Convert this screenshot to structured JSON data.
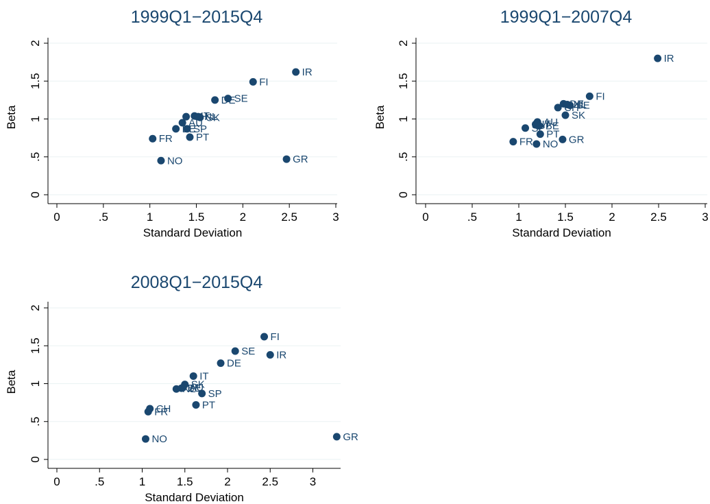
{
  "chart_data": [
    {
      "type": "scatter",
      "title": "1999Q1−2015Q4",
      "xlabel": "Standard Deviation",
      "ylabel": "Beta",
      "xlim": [
        0,
        3
      ],
      "ylim": [
        0,
        2
      ],
      "xticks": [
        {
          "v": 0,
          "t": "0"
        },
        {
          "v": 0.5,
          "t": ".5"
        },
        {
          "v": 1,
          "t": "1"
        },
        {
          "v": 1.5,
          "t": "1.5"
        },
        {
          "v": 2,
          "t": "2"
        },
        {
          "v": 2.5,
          "t": "2.5"
        },
        {
          "v": 3,
          "t": "3"
        }
      ],
      "yticks": [
        {
          "v": 0,
          "t": "0"
        },
        {
          "v": 0.5,
          "t": ".5"
        },
        {
          "v": 1,
          "t": "1"
        },
        {
          "v": 1.5,
          "t": "1.5"
        },
        {
          "v": 2,
          "t": "2"
        }
      ],
      "grid": true,
      "points": [
        {
          "label": "IR",
          "x": 2.57,
          "y": 1.62
        },
        {
          "label": "FI",
          "x": 2.11,
          "y": 1.49
        },
        {
          "label": "SE",
          "x": 1.84,
          "y": 1.27
        },
        {
          "label": "DE",
          "x": 1.7,
          "y": 1.25
        },
        {
          "label": "IT",
          "x": 1.48,
          "y": 1.04
        },
        {
          "label": "CH",
          "x": 1.39,
          "y": 1.03
        },
        {
          "label": "NL",
          "x": 1.52,
          "y": 1.03
        },
        {
          "label": "SK",
          "x": 1.54,
          "y": 1.02
        },
        {
          "label": "AU",
          "x": 1.35,
          "y": 0.95
        },
        {
          "label": "BE",
          "x": 1.28,
          "y": 0.87
        },
        {
          "label": "SP",
          "x": 1.4,
          "y": 0.87
        },
        {
          "label": "PT",
          "x": 1.43,
          "y": 0.76
        },
        {
          "label": "FR",
          "x": 1.03,
          "y": 0.74
        },
        {
          "label": "NO",
          "x": 1.12,
          "y": 0.45
        },
        {
          "label": "GR",
          "x": 2.47,
          "y": 0.47
        }
      ]
    },
    {
      "type": "scatter",
      "title": "1999Q1−2007Q4",
      "xlabel": "Standard Deviation",
      "ylabel": "Beta",
      "xlim": [
        0,
        3
      ],
      "ylim": [
        0,
        2
      ],
      "xticks": [
        {
          "v": 0,
          "t": "0"
        },
        {
          "v": 0.5,
          "t": ".5"
        },
        {
          "v": 1,
          "t": "1"
        },
        {
          "v": 1.5,
          "t": "1.5"
        },
        {
          "v": 2,
          "t": "2"
        },
        {
          "v": 2.5,
          "t": "2.5"
        },
        {
          "v": 3,
          "t": "3"
        }
      ],
      "yticks": [
        {
          "v": 0,
          "t": "0"
        },
        {
          "v": 0.5,
          "t": ".5"
        },
        {
          "v": 1,
          "t": "1"
        },
        {
          "v": 1.5,
          "t": "1.5"
        },
        {
          "v": 2,
          "t": "2"
        }
      ],
      "grid": true,
      "points": [
        {
          "label": "IR",
          "x": 2.49,
          "y": 1.8
        },
        {
          "label": "FI",
          "x": 1.76,
          "y": 1.3
        },
        {
          "label": "DE",
          "x": 1.48,
          "y": 1.2
        },
        {
          "label": "NL",
          "x": 1.52,
          "y": 1.19
        },
        {
          "label": "SE",
          "x": 1.55,
          "y": 1.18
        },
        {
          "label": "CH",
          "x": 1.42,
          "y": 1.15
        },
        {
          "label": "SK",
          "x": 1.5,
          "y": 1.05
        },
        {
          "label": "AU",
          "x": 1.2,
          "y": 0.96
        },
        {
          "label": "IT",
          "x": 1.18,
          "y": 0.93
        },
        {
          "label": "BE",
          "x": 1.22,
          "y": 0.91
        },
        {
          "label": "SP",
          "x": 1.07,
          "y": 0.88
        },
        {
          "label": "PT",
          "x": 1.23,
          "y": 0.8
        },
        {
          "label": "GR",
          "x": 1.47,
          "y": 0.73
        },
        {
          "label": "FR",
          "x": 0.94,
          "y": 0.7
        },
        {
          "label": "NO",
          "x": 1.19,
          "y": 0.67
        }
      ]
    },
    {
      "type": "scatter",
      "title": "2008Q1−2015Q4",
      "xlabel": "Standard Deviation",
      "ylabel": "Beta",
      "xlim": [
        0,
        3.3
      ],
      "ylim": [
        0,
        2
      ],
      "xticks": [
        {
          "v": 0,
          "t": "0"
        },
        {
          "v": 0.5,
          "t": ".5"
        },
        {
          "v": 1,
          "t": "1"
        },
        {
          "v": 1.5,
          "t": "1.5"
        },
        {
          "v": 2,
          "t": "2"
        },
        {
          "v": 2.5,
          "t": "2.5"
        },
        {
          "v": 3,
          "t": "3"
        }
      ],
      "yticks": [
        {
          "v": 0,
          "t": "0"
        },
        {
          "v": 0.5,
          "t": ".5"
        },
        {
          "v": 1,
          "t": "1"
        },
        {
          "v": 1.5,
          "t": "1.5"
        },
        {
          "v": 2,
          "t": "2"
        }
      ],
      "grid": true,
      "points": [
        {
          "label": "FI",
          "x": 2.43,
          "y": 1.62
        },
        {
          "label": "SE",
          "x": 2.09,
          "y": 1.43
        },
        {
          "label": "IR",
          "x": 2.5,
          "y": 1.38
        },
        {
          "label": "DE",
          "x": 1.92,
          "y": 1.27
        },
        {
          "label": "IT",
          "x": 1.6,
          "y": 1.1
        },
        {
          "label": "SK",
          "x": 1.5,
          "y": 0.99
        },
        {
          "label": "NL",
          "x": 1.4,
          "y": 0.93
        },
        {
          "label": "BE",
          "x": 1.46,
          "y": 0.94
        },
        {
          "label": "AU",
          "x": 1.48,
          "y": 0.95
        },
        {
          "label": "SP",
          "x": 1.7,
          "y": 0.87
        },
        {
          "label": "PT",
          "x": 1.63,
          "y": 0.72
        },
        {
          "label": "CH",
          "x": 1.09,
          "y": 0.67
        },
        {
          "label": "FR",
          "x": 1.07,
          "y": 0.63
        },
        {
          "label": "NO",
          "x": 1.04,
          "y": 0.27
        },
        {
          "label": "GR",
          "x": 3.28,
          "y": 0.3
        }
      ]
    }
  ]
}
